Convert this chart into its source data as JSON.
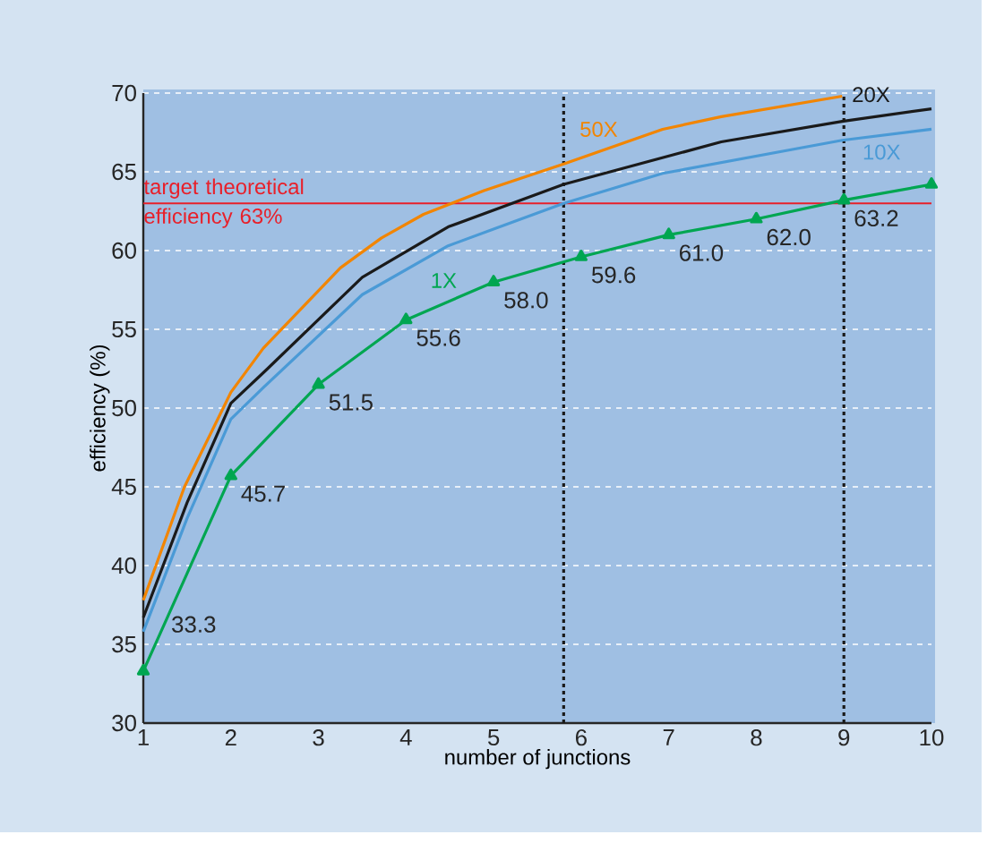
{
  "chart_data": {
    "type": "line",
    "xlabel": "number of junctions",
    "ylabel": "efficiency (%)",
    "xlim": [
      1,
      10
    ],
    "ylim": [
      30,
      70
    ],
    "xticks": [
      1,
      2,
      3,
      4,
      5,
      6,
      7,
      8,
      9,
      10
    ],
    "yticks": [
      30,
      35,
      40,
      45,
      50,
      55,
      60,
      65,
      70
    ],
    "grid": "y",
    "line_style": "solid",
    "series": [
      {
        "name": "50X",
        "color": "#f28500",
        "marker": "none",
        "x": [
          1,
          1.47,
          2,
          2.37,
          3.25,
          3.72,
          4.2,
          4.89,
          5.8,
          6.93,
          7.6,
          8.98
        ],
        "values": [
          37.8,
          45,
          51,
          53.8,
          58.9,
          60.8,
          62.3,
          63.8,
          65.5,
          67.7,
          68.5,
          69.8
        ]
      },
      {
        "name": "20X",
        "color": "#1a1a1a",
        "marker": "none",
        "x": [
          1,
          1.5,
          2,
          2.4,
          3.5,
          4.48,
          5.8,
          7.6,
          8.98,
          10
        ],
        "values": [
          36.7,
          44,
          50.3,
          52.4,
          58.3,
          61.5,
          64.2,
          66.9,
          68.2,
          69
        ]
      },
      {
        "name": "10X",
        "color": "#4a9ad6",
        "marker": "none",
        "x": [
          1,
          1.5,
          2,
          2.37,
          3.5,
          4.48,
          5.8,
          6.93,
          8.98,
          10
        ],
        "values": [
          35.8,
          43,
          49.3,
          51.3,
          57.2,
          60.3,
          63,
          64.9,
          67,
          67.7
        ]
      },
      {
        "name": "1X",
        "color": "#00a651",
        "marker": "triangle",
        "x": [
          1,
          2,
          3,
          4,
          5,
          6,
          7,
          8,
          9,
          10
        ],
        "values": [
          33.3,
          45.7,
          51.5,
          55.6,
          58.0,
          59.6,
          61.0,
          62.0,
          63.2,
          64.2
        ],
        "value_labels": [
          "33.3",
          "45.7",
          "51.5",
          "55.6",
          "58.0",
          "59.6",
          "61.0",
          "62.0",
          "63.2",
          null
        ]
      }
    ],
    "ref_lines": [
      {
        "axis": "y",
        "value": 63,
        "label": "target theoretical efficiency 63%",
        "color": "#e8202a",
        "line_style": "solid"
      },
      {
        "axis": "x",
        "value": 5.8,
        "color": "#1a1a1a",
        "line_style": "dotted"
      },
      {
        "axis": "x",
        "value": 9,
        "color": "#1a1a1a",
        "line_style": "dotted"
      }
    ]
  }
}
